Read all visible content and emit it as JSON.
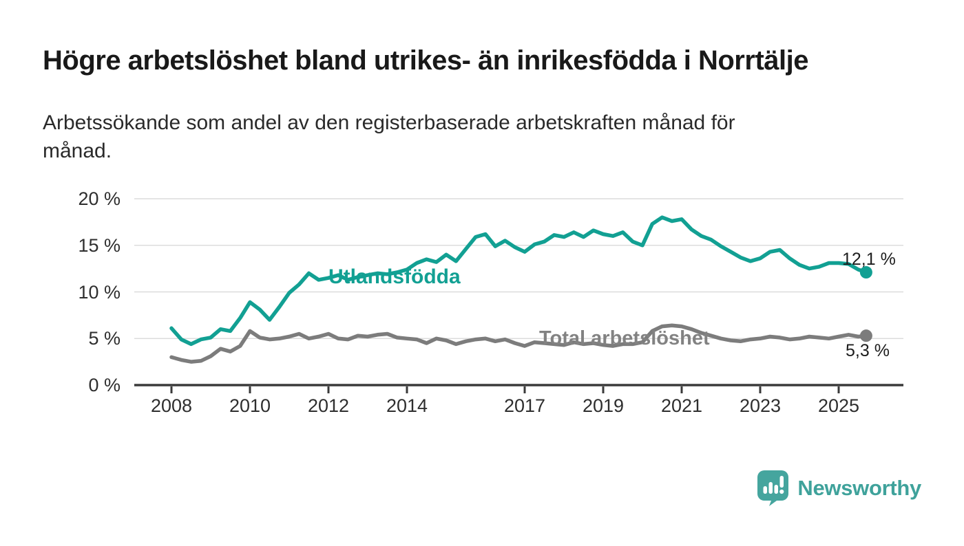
{
  "header": {
    "title": "Högre arbetslöshet bland utrikes- än inrikesfödda i Norrtälje",
    "subtitle": "Arbetssökande som andel av den registerbaserade arbetskraften månad för månad."
  },
  "chart_data": {
    "type": "line",
    "title": "Högre arbetslöshet bland utrikes- än inrikesfödda i Norrtälje",
    "xlabel": "",
    "ylabel": "",
    "unit": "%",
    "xlim": [
      2007.1,
      2026.6
    ],
    "ylim": [
      0,
      20
    ],
    "grid": "horizontal",
    "legend_position": "inline-labels-on-lines",
    "x_ticks": [
      {
        "year": 2008,
        "label": "2008"
      },
      {
        "year": 2010,
        "label": "2010"
      },
      {
        "year": 2012,
        "label": "2012"
      },
      {
        "year": 2014,
        "label": "2014"
      },
      {
        "year": 2017,
        "label": "2017"
      },
      {
        "year": 2019,
        "label": "2019"
      },
      {
        "year": 2021,
        "label": "2021"
      },
      {
        "year": 2023,
        "label": "2023"
      },
      {
        "year": 2025,
        "label": "2025"
      }
    ],
    "y_ticks": [
      {
        "value": 20,
        "label": "20 %"
      },
      {
        "value": 15,
        "label": "15 %"
      },
      {
        "value": 10,
        "label": "10 %"
      },
      {
        "value": 5,
        "label": "5 %"
      },
      {
        "value": 0,
        "label": "0 %"
      }
    ],
    "x": [
      2008,
      2008.25,
      2008.5,
      2008.75,
      2009,
      2009.25,
      2009.5,
      2009.75,
      2010,
      2010.25,
      2010.5,
      2010.75,
      2011,
      2011.25,
      2011.5,
      2011.75,
      2012,
      2012.25,
      2012.5,
      2012.75,
      2013,
      2013.25,
      2013.5,
      2013.75,
      2014,
      2014.25,
      2014.5,
      2014.75,
      2015,
      2015.25,
      2015.5,
      2015.75,
      2016,
      2016.25,
      2016.5,
      2016.75,
      2017,
      2017.25,
      2017.5,
      2017.75,
      2018,
      2018.25,
      2018.5,
      2018.75,
      2019,
      2019.25,
      2019.5,
      2019.75,
      2020,
      2020.25,
      2020.5,
      2020.75,
      2021,
      2021.25,
      2021.5,
      2021.75,
      2022,
      2022.25,
      2022.5,
      2022.75,
      2023,
      2023.25,
      2023.5,
      2023.75,
      2024,
      2024.25,
      2024.5,
      2024.75,
      2025,
      2025.25,
      2025.5,
      2025.7
    ],
    "series": [
      {
        "name": "Utlandsfödda",
        "color": "#12a093",
        "end_value": 12.1,
        "end_label": "12,1 %",
        "values": [
          6.1,
          4.9,
          4.4,
          4.9,
          5.1,
          6.0,
          5.8,
          7.2,
          8.9,
          8.1,
          7.0,
          8.4,
          9.9,
          10.8,
          12.0,
          11.3,
          11.5,
          11.8,
          11.3,
          11.6,
          11.8,
          12.0,
          11.9,
          12.1,
          12.4,
          13.1,
          13.5,
          13.2,
          14.0,
          13.3,
          14.6,
          15.9,
          16.2,
          14.9,
          15.5,
          14.8,
          14.3,
          15.1,
          15.4,
          16.1,
          15.9,
          16.4,
          15.9,
          16.6,
          16.2,
          16.0,
          16.4,
          15.4,
          15.0,
          17.3,
          18.0,
          17.6,
          17.8,
          16.7,
          16.0,
          15.6,
          14.9,
          14.3,
          13.7,
          13.3,
          13.6,
          14.3,
          14.5,
          13.6,
          12.9,
          12.5,
          12.7,
          13.1,
          13.1,
          13.0,
          12.4,
          12.1
        ]
      },
      {
        "name": "Total arbetslöshet",
        "color": "#7c7c7c",
        "end_value": 5.3,
        "end_label": "5,3 %",
        "values": [
          3.0,
          2.7,
          2.5,
          2.6,
          3.1,
          3.9,
          3.6,
          4.2,
          5.8,
          5.1,
          4.9,
          5.0,
          5.2,
          5.5,
          5.0,
          5.2,
          5.5,
          5.0,
          4.9,
          5.3,
          5.2,
          5.4,
          5.5,
          5.1,
          5.0,
          4.9,
          4.5,
          5.0,
          4.8,
          4.4,
          4.7,
          4.9,
          5.0,
          4.7,
          4.9,
          4.5,
          4.2,
          4.6,
          4.5,
          4.4,
          4.3,
          4.6,
          4.4,
          4.5,
          4.3,
          4.2,
          4.4,
          4.4,
          4.6,
          5.8,
          6.3,
          6.4,
          6.3,
          6.0,
          5.6,
          5.3,
          5.0,
          4.8,
          4.7,
          4.9,
          5.0,
          5.2,
          5.1,
          4.9,
          5.0,
          5.2,
          5.1,
          5.0,
          5.2,
          5.4,
          5.2,
          5.3
        ]
      }
    ],
    "axis_color": "#3a3a3a",
    "gridline_color": "#dcdcdc"
  },
  "footer": {
    "brand": "Newsworthy",
    "logo_icon": "newsworthy-speech-bubble-bar-chart-icon",
    "brand_color": "#3fa29b",
    "logo_fill": "#45a59e"
  }
}
